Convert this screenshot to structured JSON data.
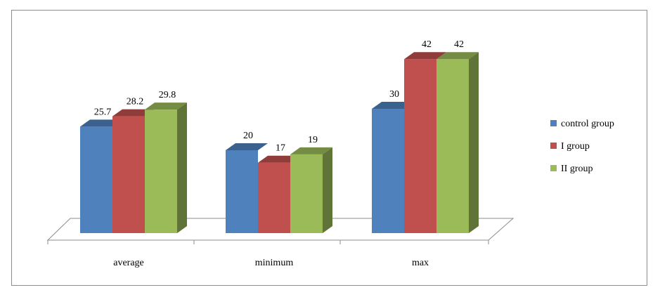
{
  "chart_data": {
    "type": "bar",
    "style": "3d-clustered-column",
    "categories": [
      "average",
      "minimum",
      "max"
    ],
    "series": [
      {
        "name": "control group",
        "values": [
          25.7,
          20,
          30
        ],
        "color": "#4f81bd"
      },
      {
        "name": "I group",
        "values": [
          28.2,
          17,
          42
        ],
        "color": "#c0504d"
      },
      {
        "name": "II group",
        "values": [
          29.8,
          19,
          42
        ],
        "color": "#9bbb59"
      }
    ],
    "data_labels": [
      [
        "25.7",
        "20",
        "30"
      ],
      [
        "28.2",
        "17",
        "42"
      ],
      [
        "29.8",
        "19",
        "42"
      ]
    ],
    "title": "",
    "xlabel": "",
    "ylabel": "",
    "ylim": [
      0,
      45
    ],
    "grid": false,
    "legend_position": "right"
  }
}
